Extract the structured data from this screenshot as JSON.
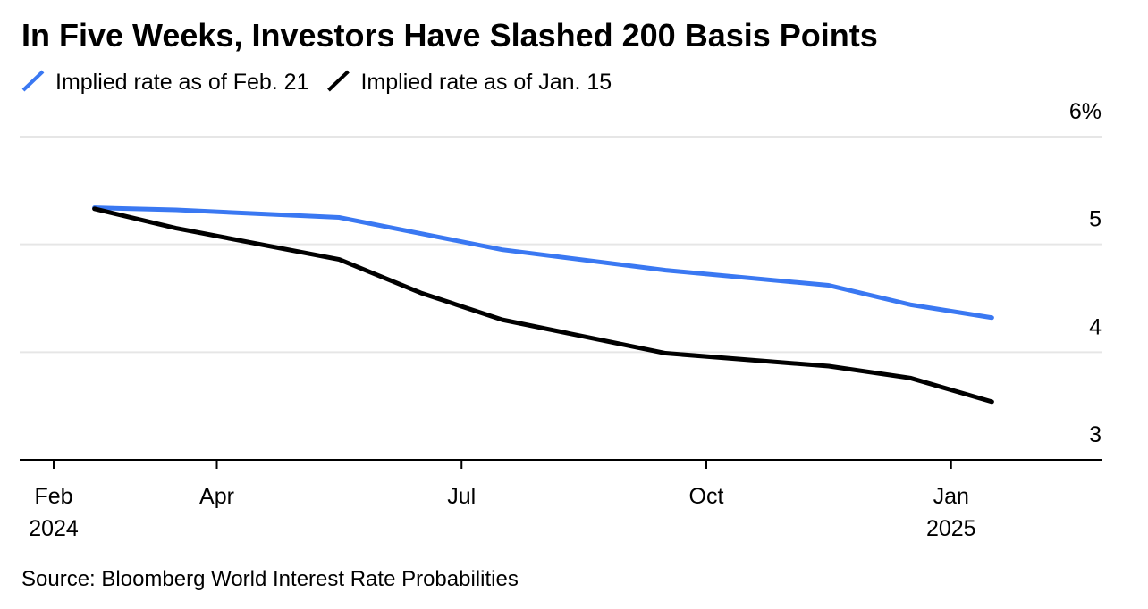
{
  "chart_data": {
    "type": "line",
    "title": "In Five Weeks, Investors Have Slashed 200 Basis Points",
    "source": "Source: Bloomberg World Interest Rate Probabilities",
    "x": [
      "2024-02",
      "2024-03",
      "2024-05",
      "2024-06",
      "2024-07",
      "2024-09",
      "2024-11",
      "2024-12",
      "2025-01"
    ],
    "series": [
      {
        "name": "Implied rate as of Feb. 21",
        "color": "#3a78f2",
        "values": [
          5.34,
          5.32,
          5.25,
          5.1,
          4.95,
          4.76,
          4.62,
          4.44,
          4.32
        ]
      },
      {
        "name": "Implied rate as of Jan. 15",
        "color": "#000000",
        "values": [
          5.33,
          5.15,
          4.86,
          4.55,
          4.3,
          3.99,
          3.87,
          3.76,
          3.54
        ]
      }
    ],
    "xlim": [
      "2024-02",
      "2025-02"
    ],
    "xticks": [
      {
        "value": "2024-02",
        "label": "Feb 2024"
      },
      {
        "value": "2024-04",
        "label": "Apr"
      },
      {
        "value": "2024-07",
        "label": "Jul"
      },
      {
        "value": "2024-10",
        "label": "Oct"
      },
      {
        "value": "2025-01",
        "label": "Jan 2025"
      }
    ],
    "ylim": [
      3,
      6
    ],
    "yticks": [
      3,
      4,
      5,
      {
        "value": 6,
        "label": "6%"
      }
    ],
    "grid": true,
    "legend": "top-left"
  }
}
